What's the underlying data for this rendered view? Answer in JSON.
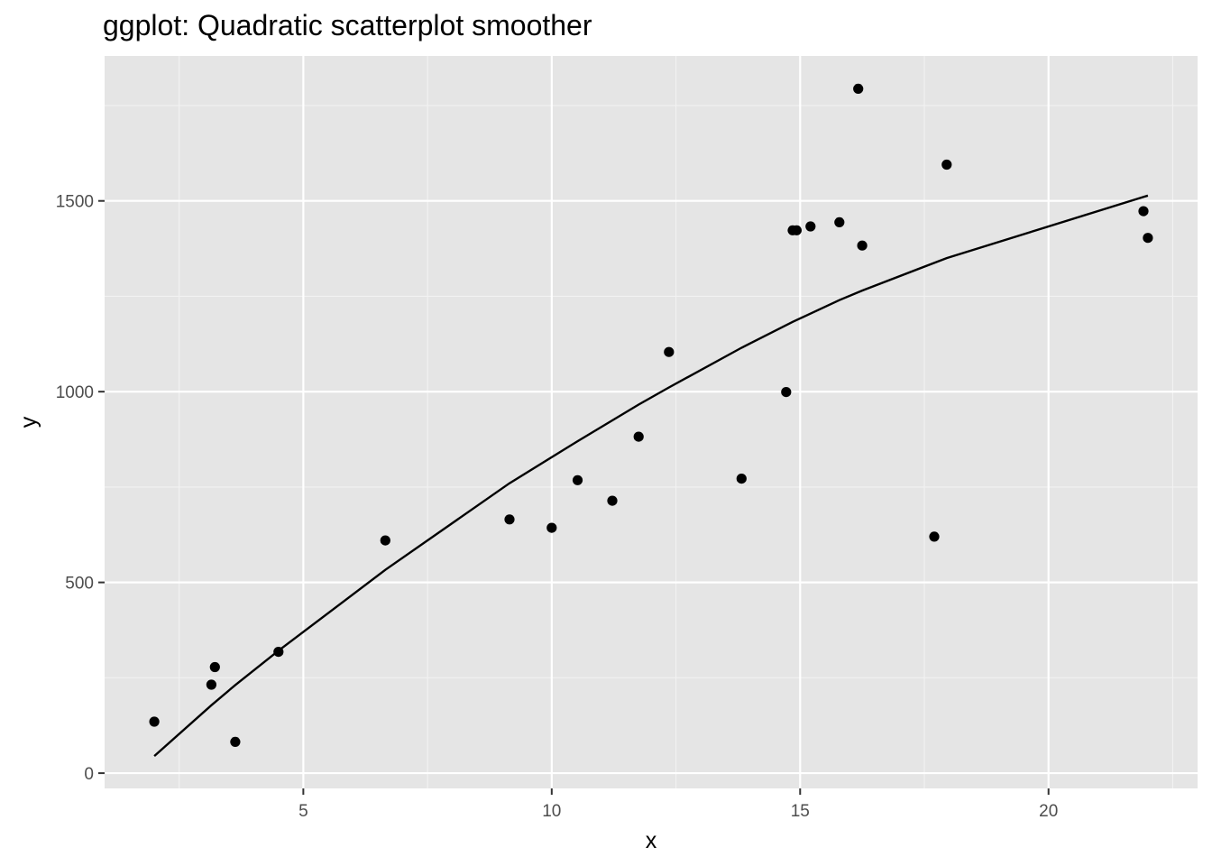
{
  "chart_data": {
    "type": "scatter",
    "title": "ggplot: Quadratic scatterplot smoother",
    "xlabel": "x",
    "ylabel": "y",
    "xlim": [
      1.0,
      23.0
    ],
    "ylim": [
      -40,
      1880
    ],
    "x_ticks": [
      5,
      10,
      15,
      20
    ],
    "x_tick_labels": [
      "5",
      "10",
      "15",
      "20"
    ],
    "y_ticks": [
      0,
      500,
      1000,
      1500
    ],
    "y_tick_labels": [
      "0",
      "500",
      "1000",
      "1500"
    ],
    "grid": true,
    "legend": "none",
    "colors": {
      "panel_background": "#e5e5e5",
      "grid_major": "#ffffff",
      "grid_minor": "#f2f2f2",
      "points": "#000000",
      "smoother": "#000000",
      "tick_text": "#4d4d4d",
      "tick_marks": "#333333"
    },
    "points": {
      "x": [
        2.0,
        3.15,
        3.22,
        3.63,
        4.5,
        6.65,
        9.15,
        10.0,
        10.52,
        11.22,
        11.75,
        12.36,
        13.82,
        14.72,
        14.85,
        14.93,
        15.21,
        15.79,
        16.17,
        16.25,
        17.7,
        17.95,
        21.91,
        22.0
      ],
      "y": [
        135,
        232,
        278,
        82,
        318,
        610,
        665,
        643,
        768,
        714,
        882,
        1104,
        772,
        999,
        1423,
        1423,
        1433,
        1444,
        1794,
        1383,
        620,
        1595,
        1473,
        1403
      ]
    },
    "smoother": {
      "x": [
        2.0,
        3.15,
        3.63,
        4.5,
        6.65,
        9.15,
        10.52,
        11.75,
        12.36,
        13.82,
        14.85,
        15.79,
        16.25,
        17.95,
        22.0
      ],
      "y": [
        45,
        178,
        231,
        321,
        533,
        760,
        870,
        966,
        1011,
        1115,
        1183,
        1240,
        1265,
        1350,
        1514
      ]
    }
  }
}
